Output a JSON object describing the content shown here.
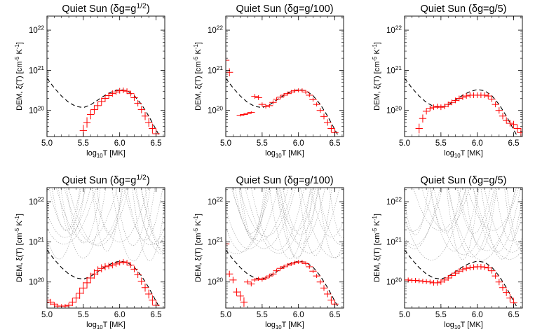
{
  "figure": {
    "background": "#ffffff"
  },
  "style": {
    "dem_color": "#ff0000",
    "model_color": "#000000",
    "loci_color": "#999999"
  },
  "chart_data": [
    {
      "type": "scatter",
      "title": "Quiet Sun (δg=g^{1/2})",
      "xlabel": "log_{10}T [MK]",
      "ylabel": "DEM, ξ(T) [cm^{-5} K^{-1}]",
      "xlim": [
        5.0,
        6.62
      ],
      "ylim_log10": [
        19.35,
        22.35
      ],
      "y_scale": "log",
      "xticks": [
        "5.0",
        "5.5",
        "6.0",
        "6.5"
      ],
      "yticks_exp": [
        "20",
        "21",
        "22"
      ],
      "loci": false,
      "model": {
        "x": [
          5.0,
          5.1,
          5.2,
          5.3,
          5.4,
          5.5,
          5.6,
          5.7,
          5.8,
          5.9,
          6.0,
          6.1,
          6.2,
          6.3,
          6.4,
          6.5,
          6.6
        ],
        "log_y": [
          20.8,
          20.56,
          20.36,
          20.2,
          20.1,
          20.07,
          20.14,
          20.26,
          20.38,
          20.47,
          20.52,
          20.49,
          20.37,
          20.15,
          19.86,
          19.52,
          19.2
        ]
      },
      "series": [
        {
          "x": [
            5.5,
            5.55,
            5.6,
            5.65,
            5.7,
            5.75,
            5.8,
            5.85,
            5.9,
            5.95,
            6.0,
            6.05,
            6.1,
            6.15,
            6.2,
            6.25,
            6.3,
            6.35,
            6.4,
            6.45,
            6.5
          ],
          "log_y": [
            19.5,
            19.7,
            19.9,
            20.02,
            20.12,
            20.22,
            20.3,
            20.37,
            20.42,
            20.46,
            20.49,
            20.5,
            20.48,
            20.42,
            20.32,
            20.18,
            20.02,
            19.86,
            19.7,
            19.55,
            19.42
          ],
          "xerr": 0.05,
          "yerr_dex": [
            0.14,
            0.13,
            0.12,
            0.11,
            0.1,
            0.1,
            0.09,
            0.08,
            0.08,
            0.07,
            0.07,
            0.07,
            0.07,
            0.07,
            0.08,
            0.08,
            0.09,
            0.1,
            0.11,
            0.12,
            0.13
          ]
        }
      ]
    },
    {
      "type": "scatter",
      "title": "Quiet Sun (δg=g/100)",
      "xlabel": "log_{10}T [MK]",
      "ylabel": "DEM, ξ(T) [cm^{-5} K^{-1}]",
      "xlim": [
        5.0,
        6.62
      ],
      "ylim_log10": [
        19.35,
        22.35
      ],
      "y_scale": "log",
      "xticks": [
        "5.0",
        "5.5",
        "6.0",
        "6.5"
      ],
      "yticks_exp": [
        "20",
        "21",
        "22"
      ],
      "loci": false,
      "model": {
        "x": [
          5.0,
          5.1,
          5.2,
          5.3,
          5.4,
          5.5,
          5.6,
          5.7,
          5.8,
          5.9,
          6.0,
          6.1,
          6.2,
          6.3,
          6.4,
          6.5,
          6.6
        ],
        "log_y": [
          20.8,
          20.56,
          20.36,
          20.2,
          20.1,
          20.07,
          20.14,
          20.26,
          20.38,
          20.47,
          20.52,
          20.49,
          20.37,
          20.15,
          19.86,
          19.52,
          19.2
        ]
      },
      "series": [
        {
          "x": [
            5.0,
            5.05,
            5.2,
            5.25,
            5.3,
            5.35,
            5.4,
            5.45,
            5.5,
            5.55,
            5.6,
            5.65,
            5.7,
            5.75,
            5.8,
            5.85,
            5.9,
            5.95,
            6.0,
            6.05,
            6.1,
            6.15,
            6.2,
            6.25,
            6.3,
            6.35,
            6.4,
            6.45,
            6.5
          ],
          "log_y": [
            21.25,
            20.95,
            19.88,
            19.9,
            19.92,
            19.95,
            20.35,
            20.32,
            20.15,
            20.1,
            20.12,
            20.2,
            20.28,
            20.33,
            20.38,
            20.42,
            20.46,
            20.49,
            20.5,
            20.5,
            20.46,
            20.38,
            20.27,
            20.15,
            20.0,
            19.85,
            19.7,
            19.55,
            19.45
          ],
          "xerr": 0.05,
          "yerr_dex": [
            0.12,
            0.1,
            0.03,
            0.03,
            0.03,
            0.03,
            0.06,
            0.06,
            0.05,
            0.05,
            0.05,
            0.05,
            0.05,
            0.05,
            0.05,
            0.05,
            0.05,
            0.05,
            0.05,
            0.05,
            0.05,
            0.05,
            0.05,
            0.05,
            0.06,
            0.07,
            0.08,
            0.09,
            0.1
          ]
        }
      ]
    },
    {
      "type": "scatter",
      "title": "Quiet Sun (δg=g/5)",
      "xlabel": "log_{10}T [MK]",
      "ylabel": "DEM, ξ(T) [cm^{-5} K^{-1}]",
      "xlim": [
        5.0,
        6.62
      ],
      "ylim_log10": [
        19.35,
        22.35
      ],
      "y_scale": "log",
      "xticks": [
        "5.0",
        "5.5",
        "6.0",
        "6.5"
      ],
      "yticks_exp": [
        "20",
        "21",
        "22"
      ],
      "loci": false,
      "model": {
        "x": [
          5.0,
          5.1,
          5.2,
          5.3,
          5.4,
          5.5,
          5.6,
          5.7,
          5.8,
          5.9,
          6.0,
          6.1,
          6.2,
          6.3,
          6.4,
          6.5,
          6.6
        ],
        "log_y": [
          20.8,
          20.56,
          20.36,
          20.2,
          20.1,
          20.07,
          20.14,
          20.26,
          20.38,
          20.47,
          20.52,
          20.49,
          20.37,
          20.15,
          19.86,
          19.52,
          19.2
        ]
      },
      "series": [
        {
          "x": [
            5.2,
            5.25,
            5.3,
            5.35,
            5.4,
            5.45,
            5.5,
            5.55,
            5.6,
            5.65,
            5.7,
            5.75,
            5.8,
            5.85,
            5.9,
            5.95,
            6.0,
            6.05,
            6.1,
            6.15,
            6.2,
            6.25,
            6.3,
            6.35,
            6.4,
            6.45,
            6.5,
            6.55,
            6.6
          ],
          "log_y": [
            19.55,
            19.8,
            19.98,
            20.05,
            20.08,
            20.1,
            20.08,
            20.1,
            20.15,
            20.2,
            20.25,
            20.3,
            20.33,
            20.36,
            20.38,
            20.38,
            20.38,
            20.38,
            20.38,
            20.36,
            20.28,
            20.15,
            20.0,
            19.86,
            19.75,
            19.68,
            19.65,
            19.55,
            19.45
          ],
          "xerr": 0.05,
          "yerr_dex": [
            0.12,
            0.1,
            0.08,
            0.07,
            0.07,
            0.07,
            0.07,
            0.07,
            0.07,
            0.07,
            0.07,
            0.07,
            0.07,
            0.07,
            0.07,
            0.07,
            0.07,
            0.07,
            0.07,
            0.07,
            0.07,
            0.07,
            0.08,
            0.08,
            0.08,
            0.08,
            0.09,
            0.1,
            0.11
          ]
        }
      ]
    },
    {
      "type": "scatter",
      "title": "Quiet Sun (δg=g^{1/2})",
      "xlabel": "log_{10}T [MK]",
      "ylabel": "DEM, ξ(T) [cm^{-5} K^{-1}]",
      "xlim": [
        5.0,
        6.62
      ],
      "ylim_log10": [
        19.35,
        22.35
      ],
      "y_scale": "log",
      "xticks": [
        "5.0",
        "5.5",
        "6.0",
        "6.5"
      ],
      "yticks_exp": [
        "20",
        "21",
        "22"
      ],
      "loci": true,
      "model": {
        "x": [
          5.0,
          5.1,
          5.2,
          5.3,
          5.4,
          5.5,
          5.6,
          5.7,
          5.8,
          5.9,
          6.0,
          6.1,
          6.2,
          6.3,
          6.4,
          6.5,
          6.6
        ],
        "log_y": [
          20.8,
          20.56,
          20.36,
          20.2,
          20.1,
          20.07,
          20.14,
          20.26,
          20.38,
          20.47,
          20.52,
          20.49,
          20.37,
          20.15,
          19.86,
          19.52,
          19.2
        ]
      },
      "series": [
        {
          "x": [
            5.0,
            5.05,
            5.1,
            5.15,
            5.2,
            5.25,
            5.3,
            5.35,
            5.4,
            5.45,
            5.5,
            5.55,
            5.6,
            5.65,
            5.7,
            5.75,
            5.8,
            5.85,
            5.9,
            5.95,
            6.0,
            6.05,
            6.1,
            6.15,
            6.2,
            6.25,
            6.3,
            6.35,
            6.4,
            6.45,
            6.5
          ],
          "log_y": [
            19.55,
            19.5,
            19.45,
            19.4,
            19.4,
            19.4,
            19.42,
            19.5,
            19.6,
            19.72,
            19.85,
            19.98,
            20.1,
            20.2,
            20.28,
            20.34,
            20.38,
            20.4,
            20.42,
            20.45,
            20.48,
            20.5,
            20.48,
            20.42,
            20.32,
            20.18,
            20.02,
            19.86,
            19.7,
            19.55,
            19.42
          ],
          "xerr": 0.05,
          "yerr_dex": [
            0.08,
            0.08,
            0.05,
            0.05,
            0.05,
            0.05,
            0.06,
            0.1,
            0.12,
            0.14,
            0.15,
            0.14,
            0.13,
            0.12,
            0.11,
            0.1,
            0.09,
            0.08,
            0.08,
            0.07,
            0.07,
            0.07,
            0.07,
            0.07,
            0.08,
            0.08,
            0.09,
            0.1,
            0.11,
            0.12,
            0.13
          ]
        }
      ]
    },
    {
      "type": "scatter",
      "title": "Quiet Sun (δg=g/100)",
      "xlabel": "log_{10}T [MK]",
      "ylabel": "DEM, ξ(T) [cm^{-5} K^{-1}]",
      "xlim": [
        5.0,
        6.62
      ],
      "ylim_log10": [
        19.35,
        22.35
      ],
      "y_scale": "log",
      "xticks": [
        "5.0",
        "5.5",
        "6.0",
        "6.5"
      ],
      "yticks_exp": [
        "20",
        "21",
        "22"
      ],
      "loci": true,
      "model": {
        "x": [
          5.0,
          5.1,
          5.2,
          5.3,
          5.4,
          5.5,
          5.6,
          5.7,
          5.8,
          5.9,
          6.0,
          6.1,
          6.2,
          6.3,
          6.4,
          6.5,
          6.6
        ],
        "log_y": [
          20.8,
          20.56,
          20.36,
          20.2,
          20.1,
          20.07,
          20.14,
          20.26,
          20.38,
          20.47,
          20.52,
          20.49,
          20.37,
          20.15,
          19.86,
          19.52,
          19.2
        ]
      },
      "series": [
        {
          "x": [
            5.0,
            5.05,
            5.1,
            5.15,
            5.2,
            5.25,
            5.3,
            5.35,
            5.4,
            5.45,
            5.5,
            5.55,
            5.6,
            5.65,
            5.7,
            5.75,
            5.8,
            5.85,
            5.9,
            5.95,
            6.0,
            6.05,
            6.1,
            6.15,
            6.2,
            6.25,
            6.3,
            6.35,
            6.4,
            6.45,
            6.5
          ],
          "log_y": [
            20.95,
            20.2,
            20.05,
            19.75,
            19.65,
            19.5,
            20.0,
            19.95,
            20.05,
            20.08,
            20.06,
            20.1,
            20.15,
            20.2,
            20.28,
            20.34,
            20.38,
            20.42,
            20.45,
            20.48,
            20.5,
            20.5,
            20.46,
            20.38,
            20.27,
            20.15,
            20.0,
            19.85,
            19.7,
            19.55,
            19.45
          ],
          "xerr": 0.05,
          "yerr_dex": [
            0.12,
            0.08,
            0.08,
            0.1,
            0.12,
            0.12,
            0.06,
            0.06,
            0.05,
            0.05,
            0.05,
            0.05,
            0.05,
            0.05,
            0.05,
            0.05,
            0.05,
            0.05,
            0.05,
            0.05,
            0.05,
            0.05,
            0.05,
            0.05,
            0.05,
            0.05,
            0.06,
            0.07,
            0.08,
            0.09,
            0.1
          ]
        }
      ]
    },
    {
      "type": "scatter",
      "title": "Quiet Sun (δg=g/5)",
      "xlabel": "log_{10}T [MK]",
      "ylabel": "DEM, ξ(T) [cm^{-5} K^{-1}]",
      "xlim": [
        5.0,
        6.62
      ],
      "ylim_log10": [
        19.35,
        22.35
      ],
      "y_scale": "log",
      "xticks": [
        "5.0",
        "5.5",
        "6.0",
        "6.5"
      ],
      "yticks_exp": [
        "20",
        "21",
        "22"
      ],
      "loci": true,
      "model": {
        "x": [
          5.0,
          5.1,
          5.2,
          5.3,
          5.4,
          5.5,
          5.6,
          5.7,
          5.8,
          5.9,
          6.0,
          6.1,
          6.2,
          6.3,
          6.4,
          6.5,
          6.6
        ],
        "log_y": [
          20.8,
          20.56,
          20.36,
          20.2,
          20.1,
          20.07,
          20.14,
          20.26,
          20.38,
          20.47,
          20.52,
          20.49,
          20.37,
          20.15,
          19.86,
          19.52,
          19.2
        ]
      },
      "series": [
        {
          "x": [
            5.0,
            5.05,
            5.1,
            5.15,
            5.2,
            5.25,
            5.3,
            5.35,
            5.4,
            5.45,
            5.5,
            5.55,
            5.6,
            5.65,
            5.7,
            5.75,
            5.8,
            5.85,
            5.9,
            5.95,
            6.0,
            6.05,
            6.1,
            6.15,
            6.2,
            6.25,
            6.3,
            6.35,
            6.4,
            6.45,
            6.5
          ],
          "log_y": [
            20.05,
            20.05,
            20.04,
            20.04,
            20.03,
            20.02,
            20.01,
            20.0,
            19.98,
            19.98,
            20.0,
            20.05,
            20.1,
            20.16,
            20.22,
            20.27,
            20.31,
            20.34,
            20.36,
            20.37,
            20.38,
            20.38,
            20.37,
            20.35,
            20.28,
            20.15,
            20.0,
            19.86,
            19.74,
            19.6,
            19.48
          ],
          "xerr": 0.05,
          "yerr_dex": [
            0.06,
            0.06,
            0.06,
            0.06,
            0.06,
            0.06,
            0.06,
            0.06,
            0.07,
            0.07,
            0.07,
            0.07,
            0.07,
            0.07,
            0.07,
            0.07,
            0.07,
            0.07,
            0.07,
            0.07,
            0.07,
            0.07,
            0.07,
            0.07,
            0.07,
            0.07,
            0.08,
            0.08,
            0.09,
            0.1,
            0.11
          ]
        }
      ]
    }
  ]
}
